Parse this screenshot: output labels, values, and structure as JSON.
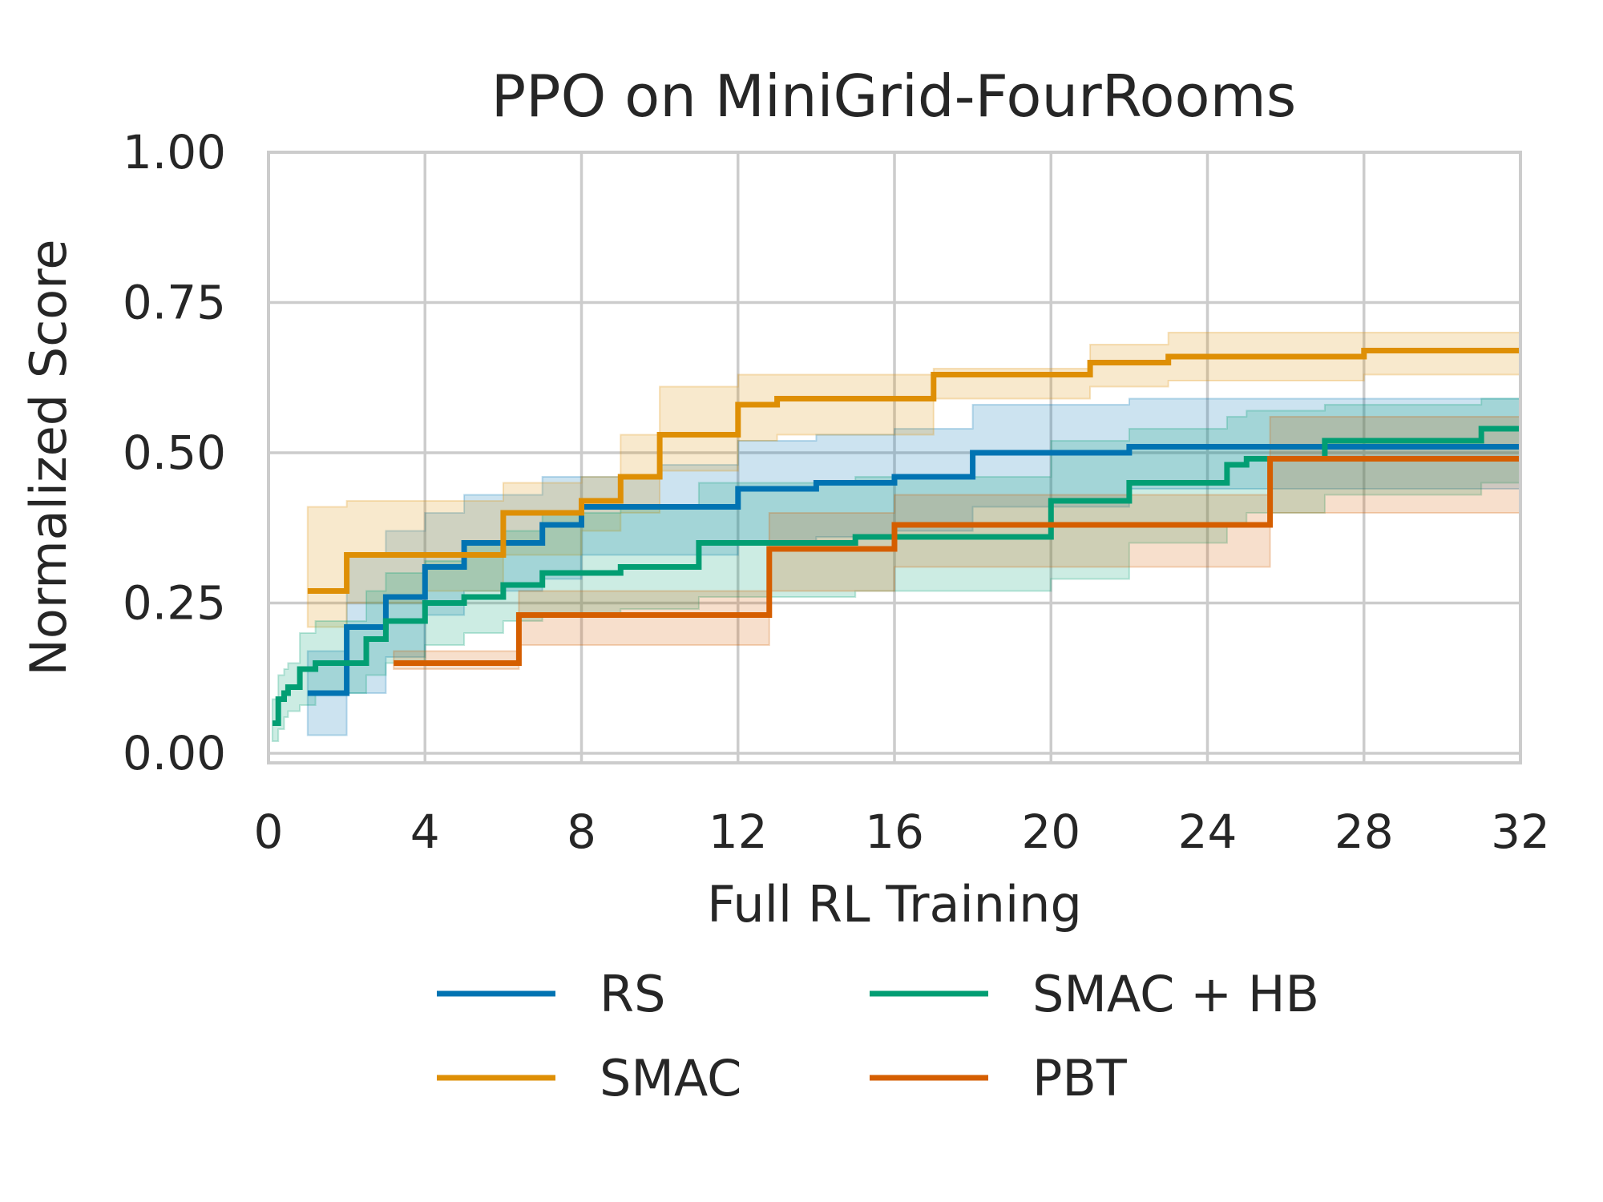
{
  "chart_data": {
    "type": "line",
    "title": "PPO on MiniGrid-FourRooms",
    "xlabel": "Full RL Training",
    "ylabel": "Normalized Score",
    "xlim": [
      0,
      32
    ],
    "ylim": [
      0,
      1
    ],
    "xticks": [
      "0",
      "4",
      "8",
      "12",
      "16",
      "20",
      "24",
      "28",
      "32"
    ],
    "yticks": [
      "0.00",
      "0.25",
      "0.50",
      "0.75",
      "1.00"
    ],
    "grid": true,
    "legend_position": "bottom",
    "series": [
      {
        "name": "RS",
        "color": "#0173b2",
        "x": [
          1.0,
          2.0,
          3.0,
          4.0,
          5.0,
          6.0,
          7.0,
          8.0,
          10.0,
          12.0,
          14.0,
          16.0,
          18.0,
          22.0,
          31.0,
          32.0
        ],
        "y": [
          0.1,
          0.21,
          0.26,
          0.31,
          0.35,
          0.35,
          0.38,
          0.41,
          0.41,
          0.44,
          0.45,
          0.46,
          0.5,
          0.51,
          0.51,
          0.51
        ],
        "lower": [
          0.03,
          0.1,
          0.16,
          0.23,
          0.27,
          0.27,
          0.29,
          0.33,
          0.33,
          0.35,
          0.36,
          0.37,
          0.41,
          0.44,
          0.44,
          0.44
        ],
        "upper": [
          0.17,
          0.33,
          0.37,
          0.4,
          0.43,
          0.43,
          0.46,
          0.46,
          0.48,
          0.52,
          0.53,
          0.54,
          0.58,
          0.59,
          0.59,
          0.59
        ]
      },
      {
        "name": "SMAC",
        "color": "#de8f05",
        "x": [
          1.0,
          2.0,
          4.0,
          6.0,
          8.0,
          9.0,
          10.0,
          12.0,
          13.0,
          17.0,
          21.0,
          23.0,
          28.0,
          32.0
        ],
        "y": [
          0.27,
          0.33,
          0.33,
          0.4,
          0.42,
          0.46,
          0.53,
          0.58,
          0.59,
          0.63,
          0.65,
          0.66,
          0.67,
          0.67
        ],
        "lower": [
          0.21,
          0.25,
          0.27,
          0.33,
          0.37,
          0.4,
          0.47,
          0.52,
          0.53,
          0.59,
          0.61,
          0.62,
          0.63,
          0.63
        ],
        "upper": [
          0.41,
          0.42,
          0.42,
          0.45,
          0.46,
          0.53,
          0.61,
          0.63,
          0.63,
          0.64,
          0.68,
          0.7,
          0.7,
          0.7
        ]
      },
      {
        "name": "SMAC + HB",
        "color": "#029e73",
        "x": [
          0.1,
          0.25,
          0.4,
          0.5,
          0.8,
          1.2,
          2.5,
          3.0,
          4.0,
          5.0,
          6.0,
          7.0,
          9.0,
          11.0,
          15.0,
          20.0,
          22.0,
          24.5,
          25.0,
          27.0,
          31.0,
          32.0
        ],
        "y": [
          0.05,
          0.09,
          0.1,
          0.11,
          0.14,
          0.15,
          0.19,
          0.22,
          0.25,
          0.26,
          0.28,
          0.3,
          0.31,
          0.35,
          0.36,
          0.42,
          0.45,
          0.48,
          0.49,
          0.52,
          0.54,
          0.54
        ],
        "lower": [
          0.02,
          0.04,
          0.06,
          0.07,
          0.08,
          0.1,
          0.13,
          0.15,
          0.18,
          0.2,
          0.22,
          0.23,
          0.24,
          0.26,
          0.27,
          0.29,
          0.35,
          0.38,
          0.4,
          0.43,
          0.45,
          0.45
        ],
        "upper": [
          0.09,
          0.13,
          0.14,
          0.15,
          0.2,
          0.22,
          0.27,
          0.3,
          0.32,
          0.35,
          0.37,
          0.4,
          0.41,
          0.45,
          0.46,
          0.52,
          0.54,
          0.56,
          0.57,
          0.58,
          0.59,
          0.59
        ]
      },
      {
        "name": "PBT",
        "color": "#d55e00",
        "x": [
          3.2,
          6.4,
          12.8,
          16.0,
          25.6,
          32.0
        ],
        "y": [
          0.15,
          0.23,
          0.34,
          0.38,
          0.49,
          0.49
        ],
        "lower": [
          0.14,
          0.18,
          0.27,
          0.31,
          0.4,
          0.4
        ],
        "upper": [
          0.17,
          0.27,
          0.4,
          0.43,
          0.56,
          0.56
        ]
      }
    ],
    "legend_order": [
      "RS",
      "SMAC",
      "SMAC + HB",
      "PBT"
    ]
  }
}
